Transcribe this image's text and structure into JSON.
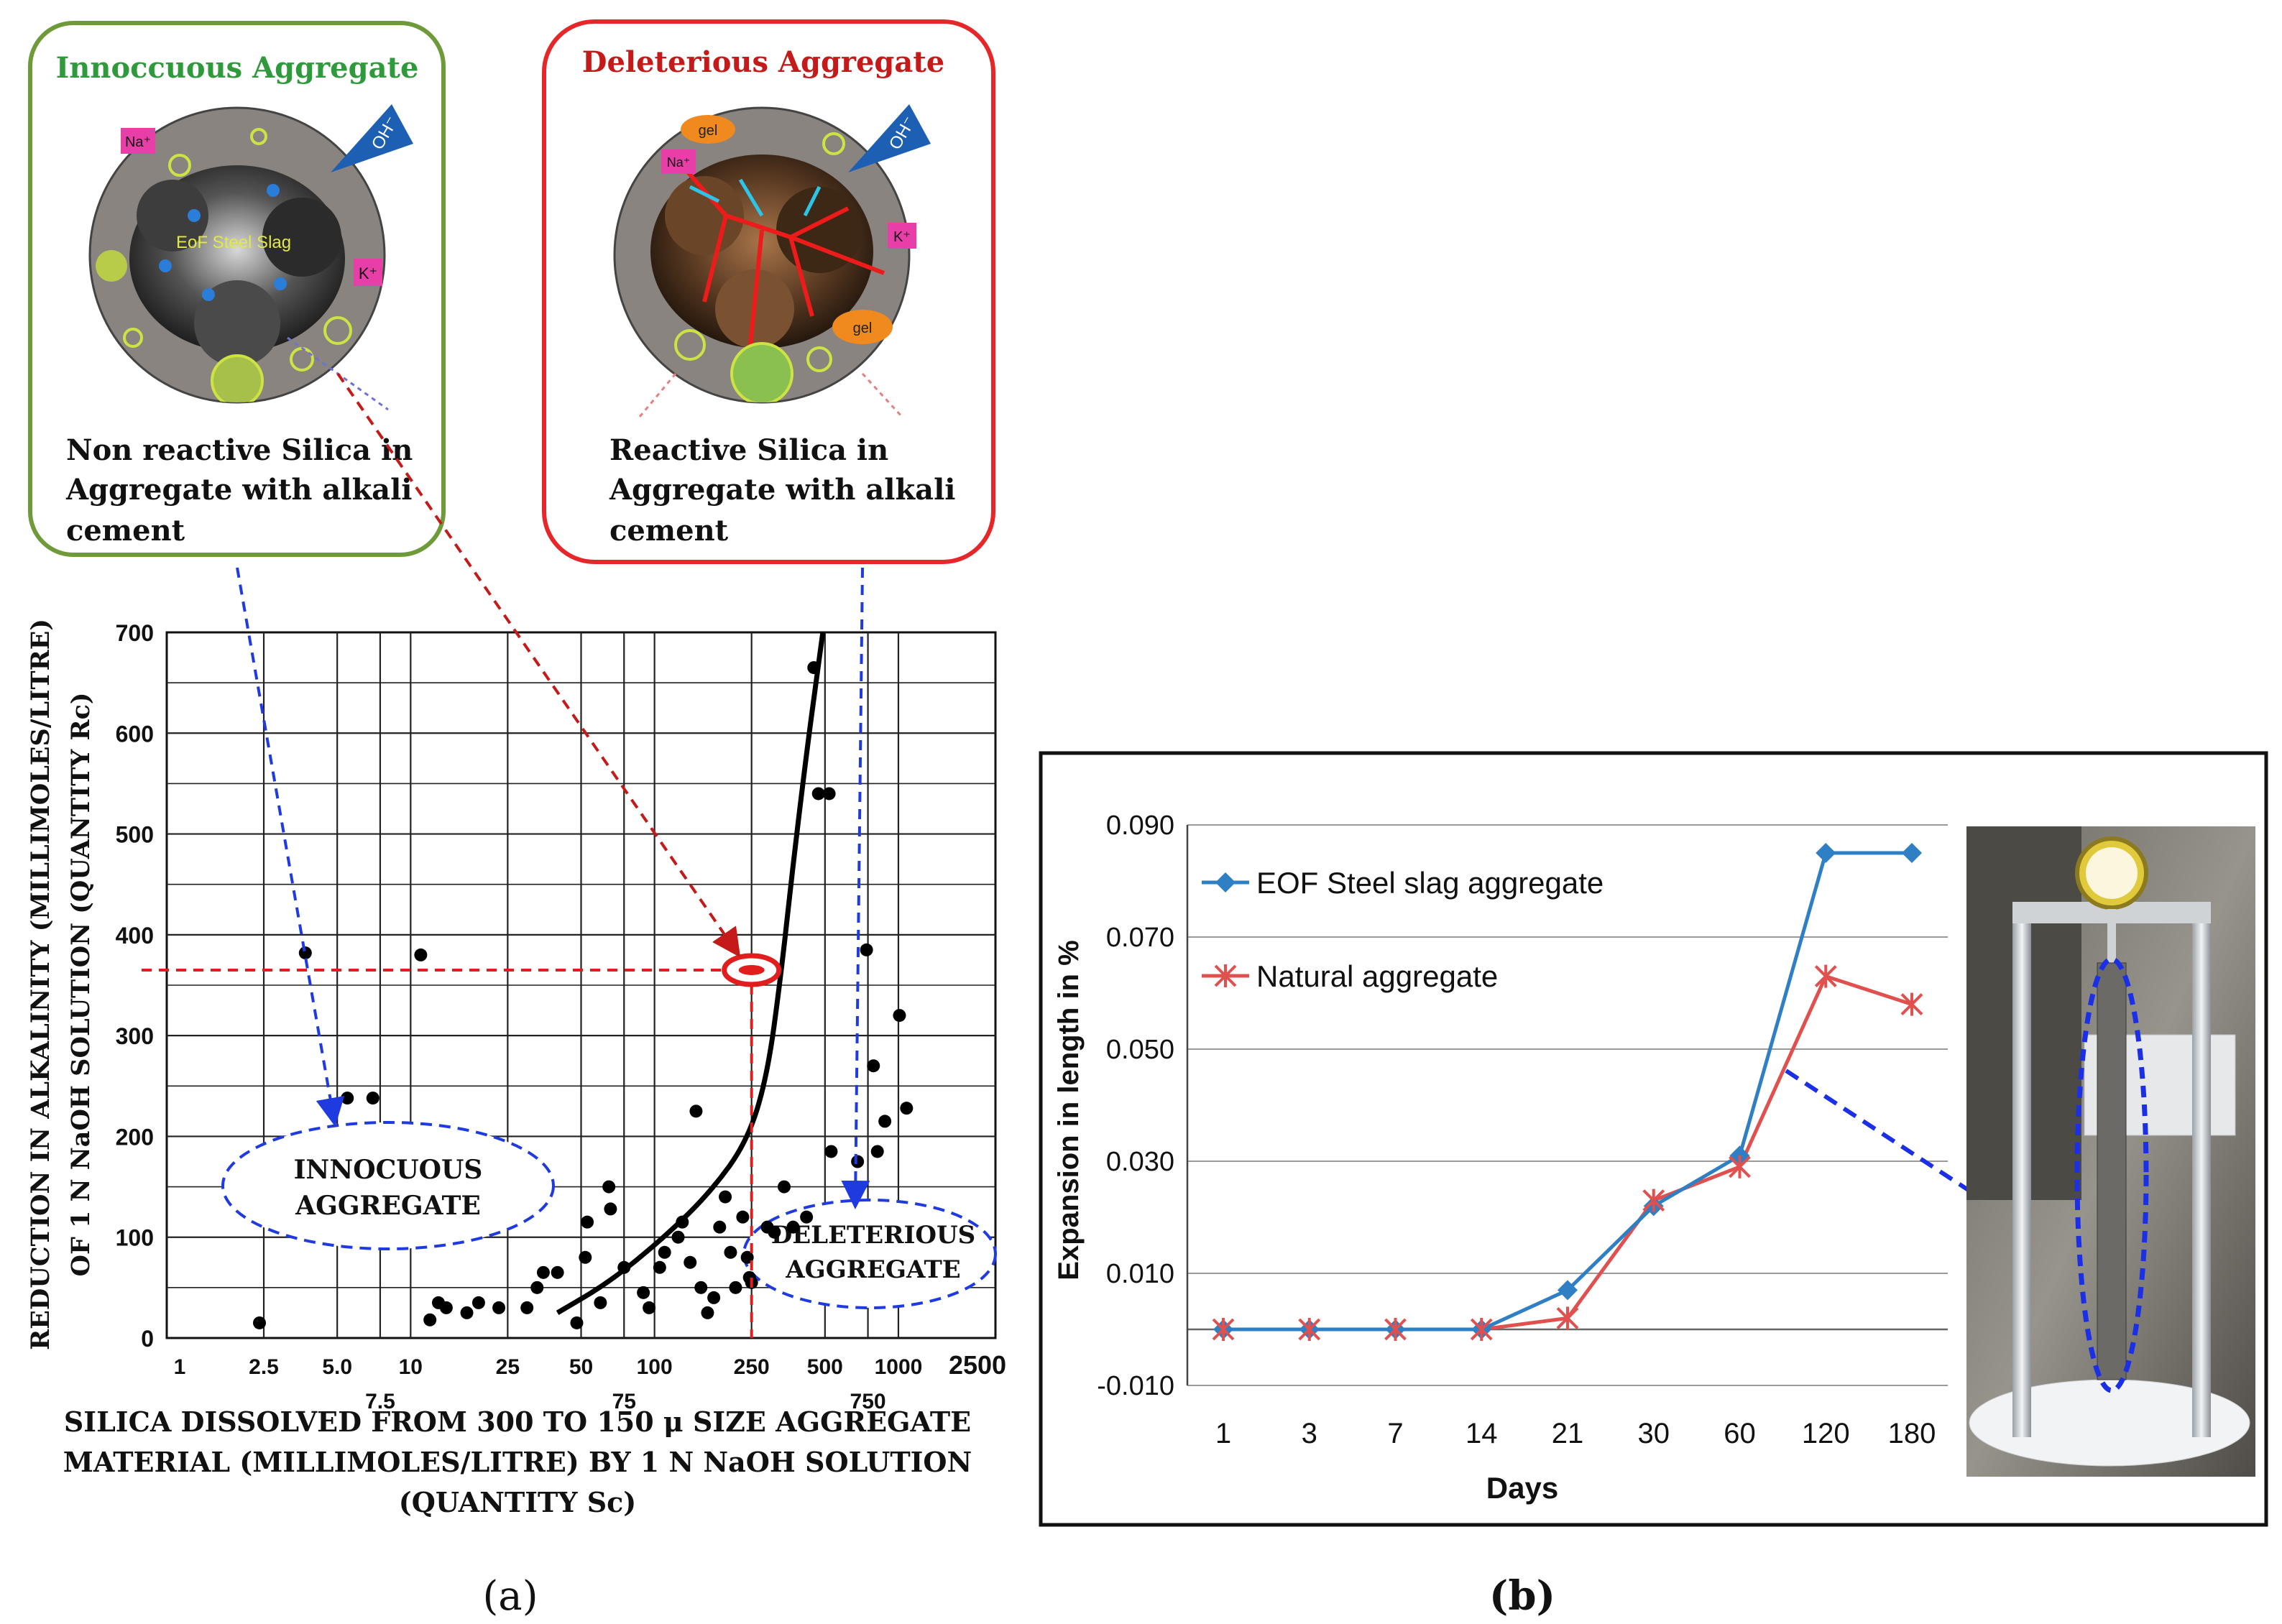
{
  "panel_a": {
    "label": "(a)",
    "innocuous_box": {
      "title": "Innoccuous Aggregate",
      "caption_lines": [
        "Non reactive Silica in",
        "Aggregate with alkali",
        "cement"
      ],
      "img_labels": {
        "na": "Na⁺",
        "k": "K⁺",
        "oh": "OH⁻",
        "slag": "EoF Steel Slag"
      }
    },
    "deleterious_box": {
      "title": "Deleterious Aggregate",
      "caption_lines": [
        "Reactive Silica in",
        "Aggregate with alkali",
        "cement"
      ],
      "img_labels": {
        "na": "Na⁺",
        "k": "K⁺",
        "oh": "OH⁻",
        "gel": "gel"
      }
    },
    "zones": {
      "innocuous": [
        "INNOCUOUS",
        "AGGREGATE"
      ],
      "deleterious": [
        "DELETERIOUS",
        "AGGREGATE"
      ]
    },
    "colors": {
      "innocuous_green": "#2e9a3b",
      "deleterious_red": "#c41a1a",
      "arrow_blue": "#1f3be0",
      "marker_red": "#e21d1d"
    }
  },
  "panel_b": {
    "label": "(b)",
    "colors": {
      "eof": "#2f7fc4",
      "natural": "#e0504e",
      "arrow": "#1b2fe6"
    }
  },
  "chart_data": [
    {
      "type": "scatter",
      "title": "",
      "xlabel_lines": [
        "SILICA DISSOLVED FROM 300 TO 150 μ SIZE AGGREGATE",
        "MATERIAL (MILLIMOLES/LITRE) BY 1 N NaOH SOLUTION",
        "(QUANTITY Sc)"
      ],
      "ylabel_lines": [
        "REDUCTION IN ALKALINITY (MILLIMOLES/LITRE)",
        "OF 1 N NaOH SOLUTION (QUANTITY Rc)"
      ],
      "x_scale": "log",
      "xlim": [
        1,
        2500
      ],
      "ylim": [
        0,
        700
      ],
      "x_ticks_row1": [
        "1",
        "2.5",
        "5.0",
        "10",
        "25",
        "50",
        "100",
        "250",
        "500",
        "1000",
        "2500"
      ],
      "x_ticks_row1_vals": [
        1,
        2.5,
        5,
        10,
        25,
        50,
        100,
        250,
        500,
        1000,
        2500
      ],
      "x_ticks_row2": [
        "7.5",
        "75",
        "750"
      ],
      "x_ticks_row2_vals": [
        7.5,
        75,
        750
      ],
      "y_ticks": [
        "0",
        "100",
        "200",
        "300",
        "400",
        "500",
        "600",
        "700"
      ],
      "y_ticks_vals": [
        0,
        100,
        200,
        300,
        400,
        500,
        600,
        700
      ],
      "scatter_points": [
        [
          2.4,
          15
        ],
        [
          3.7,
          382
        ],
        [
          5.5,
          238
        ],
        [
          7,
          238
        ],
        [
          11,
          380
        ],
        [
          12,
          18
        ],
        [
          13,
          35
        ],
        [
          14,
          30
        ],
        [
          17,
          25
        ],
        [
          19,
          35
        ],
        [
          23,
          30
        ],
        [
          30,
          30
        ],
        [
          33,
          50
        ],
        [
          35,
          65
        ],
        [
          40,
          65
        ],
        [
          48,
          15
        ],
        [
          52,
          80
        ],
        [
          53,
          115
        ],
        [
          60,
          35
        ],
        [
          65,
          150
        ],
        [
          66,
          128
        ],
        [
          75,
          70
        ],
        [
          90,
          45
        ],
        [
          95,
          30
        ],
        [
          105,
          70
        ],
        [
          110,
          85
        ],
        [
          125,
          100
        ],
        [
          130,
          115
        ],
        [
          140,
          75
        ],
        [
          148,
          225
        ],
        [
          155,
          50
        ],
        [
          165,
          25
        ],
        [
          175,
          40
        ],
        [
          185,
          110
        ],
        [
          195,
          140
        ],
        [
          205,
          85
        ],
        [
          215,
          50
        ],
        [
          230,
          120
        ],
        [
          240,
          80
        ],
        [
          245,
          60
        ],
        [
          250,
          55
        ],
        [
          290,
          110
        ],
        [
          310,
          105
        ],
        [
          340,
          150
        ],
        [
          370,
          110
        ],
        [
          420,
          120
        ],
        [
          450,
          665
        ],
        [
          470,
          540
        ],
        [
          520,
          540
        ],
        [
          530,
          185
        ],
        [
          680,
          175
        ],
        [
          740,
          385
        ],
        [
          790,
          270
        ],
        [
          820,
          185
        ],
        [
          880,
          215
        ],
        [
          1010,
          320
        ],
        [
          1080,
          228
        ]
      ],
      "boundary_curve": [
        [
          40,
          25
        ],
        [
          65,
          55
        ],
        [
          110,
          100
        ],
        [
          170,
          145
        ],
        [
          240,
          195
        ],
        [
          290,
          260
        ],
        [
          330,
          360
        ],
        [
          370,
          470
        ],
        [
          420,
          580
        ],
        [
          465,
          660
        ],
        [
          490,
          700
        ]
      ],
      "marker_point": [
        250,
        365
      ],
      "zones": {
        "innocuous": "INNOCUOUS AGGREGATE",
        "deleterious": "DELETERIOUS AGGREGATE"
      }
    },
    {
      "type": "line",
      "title": "",
      "xlabel": "Days",
      "ylabel": "Expansion in length in %",
      "categories": [
        "1",
        "3",
        "7",
        "14",
        "21",
        "30",
        "60",
        "120",
        "180"
      ],
      "ylim": [
        -0.01,
        0.09
      ],
      "y_ticks": [
        "-0.010",
        "0.010",
        "0.030",
        "0.050",
        "0.070",
        "0.090"
      ],
      "y_ticks_vals": [
        -0.01,
        0.01,
        0.03,
        0.05,
        0.07,
        0.09
      ],
      "gridlines": true,
      "legend_position": "top-left",
      "series": [
        {
          "name": "EOF Steel slag aggregate",
          "values": [
            0.0,
            0.0,
            0.0,
            0.0,
            0.007,
            0.022,
            0.031,
            0.085,
            0.085
          ],
          "marker": "diamond"
        },
        {
          "name": "Natural aggregate",
          "values": [
            0.0,
            0.0,
            0.0,
            0.0,
            0.002,
            0.023,
            0.029,
            0.063,
            0.058
          ],
          "marker": "asterisk"
        }
      ]
    }
  ]
}
